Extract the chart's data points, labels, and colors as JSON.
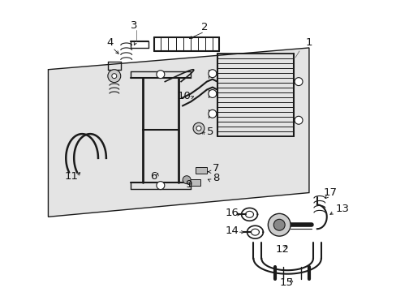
{
  "background_color": "#ffffff",
  "fig_width": 4.89,
  "fig_height": 3.6,
  "dpi": 100,
  "line_color": "#1a1a1a",
  "light_gray": "#d8d8d8",
  "parts_bg": "#e0e0e0"
}
